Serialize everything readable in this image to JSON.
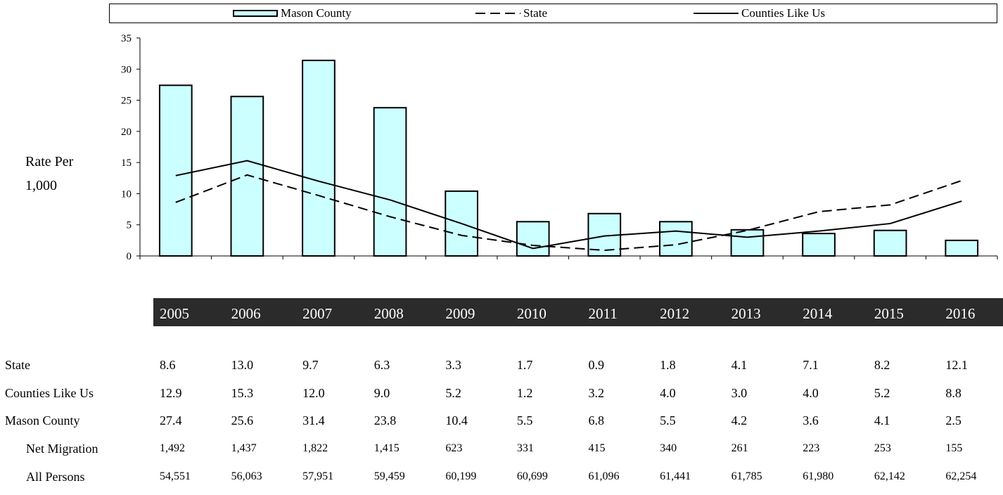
{
  "legend": {
    "mason": "Mason County",
    "state": "State",
    "counties": "Counties Like Us"
  },
  "ylabel_line1": "Rate Per",
  "ylabel_line2": "1,000",
  "colors": {
    "bar_fill": "#ccffff",
    "year_band": "#2b2b2b"
  },
  "chart_data": {
    "type": "bar",
    "categories": [
      "2005",
      "2006",
      "2007",
      "2008",
      "2009",
      "2010",
      "2011",
      "2012",
      "2013",
      "2014",
      "2015",
      "2016"
    ],
    "ylim": [
      0,
      35
    ],
    "yticks": [
      "0",
      "5",
      "10",
      "15",
      "20",
      "25",
      "30",
      "35"
    ],
    "legend_position": "top",
    "grid": false,
    "series": [
      {
        "name": "Mason County",
        "kind": "bar",
        "values": [
          27.4,
          25.6,
          31.4,
          23.8,
          10.4,
          5.5,
          6.8,
          5.5,
          4.2,
          3.6,
          4.1,
          2.5
        ]
      },
      {
        "name": "State",
        "kind": "line-dashed",
        "values": [
          8.6,
          13.0,
          9.7,
          6.3,
          3.3,
          1.7,
          0.9,
          1.8,
          4.1,
          7.1,
          8.2,
          12.1
        ]
      },
      {
        "name": "Counties Like Us",
        "kind": "line-solid",
        "values": [
          12.9,
          15.3,
          12.0,
          9.0,
          5.2,
          1.2,
          3.2,
          4.0,
          3.0,
          4.0,
          5.2,
          8.8
        ]
      }
    ]
  },
  "table": {
    "rows": [
      {
        "label": "State",
        "indent": false,
        "small": false,
        "values": [
          "8.6",
          "13.0",
          "9.7",
          "6.3",
          "3.3",
          "1.7",
          "0.9",
          "1.8",
          "4.1",
          "7.1",
          "8.2",
          "12.1"
        ]
      },
      {
        "label": "Counties Like Us",
        "indent": false,
        "small": false,
        "values": [
          "12.9",
          "15.3",
          "12.0",
          "9.0",
          "5.2",
          "1.2",
          "3.2",
          "4.0",
          "3.0",
          "4.0",
          "5.2",
          "8.8"
        ]
      },
      {
        "label": "Mason County",
        "indent": false,
        "small": false,
        "values": [
          "27.4",
          "25.6",
          "31.4",
          "23.8",
          "10.4",
          "5.5",
          "6.8",
          "5.5",
          "4.2",
          "3.6",
          "4.1",
          "2.5"
        ]
      },
      {
        "label": "Net Migration",
        "indent": true,
        "small": true,
        "values": [
          "1,492",
          "1,437",
          "1,822",
          "1,415",
          "623",
          "331",
          "415",
          "340",
          "261",
          "223",
          "253",
          "155"
        ]
      },
      {
        "label": "All Persons",
        "indent": true,
        "small": true,
        "values": [
          "54,551",
          "56,063",
          "57,951",
          "59,459",
          "60,199",
          "60,699",
          "61,096",
          "61,441",
          "61,785",
          "61,980",
          "62,142",
          "62,254"
        ]
      }
    ]
  }
}
